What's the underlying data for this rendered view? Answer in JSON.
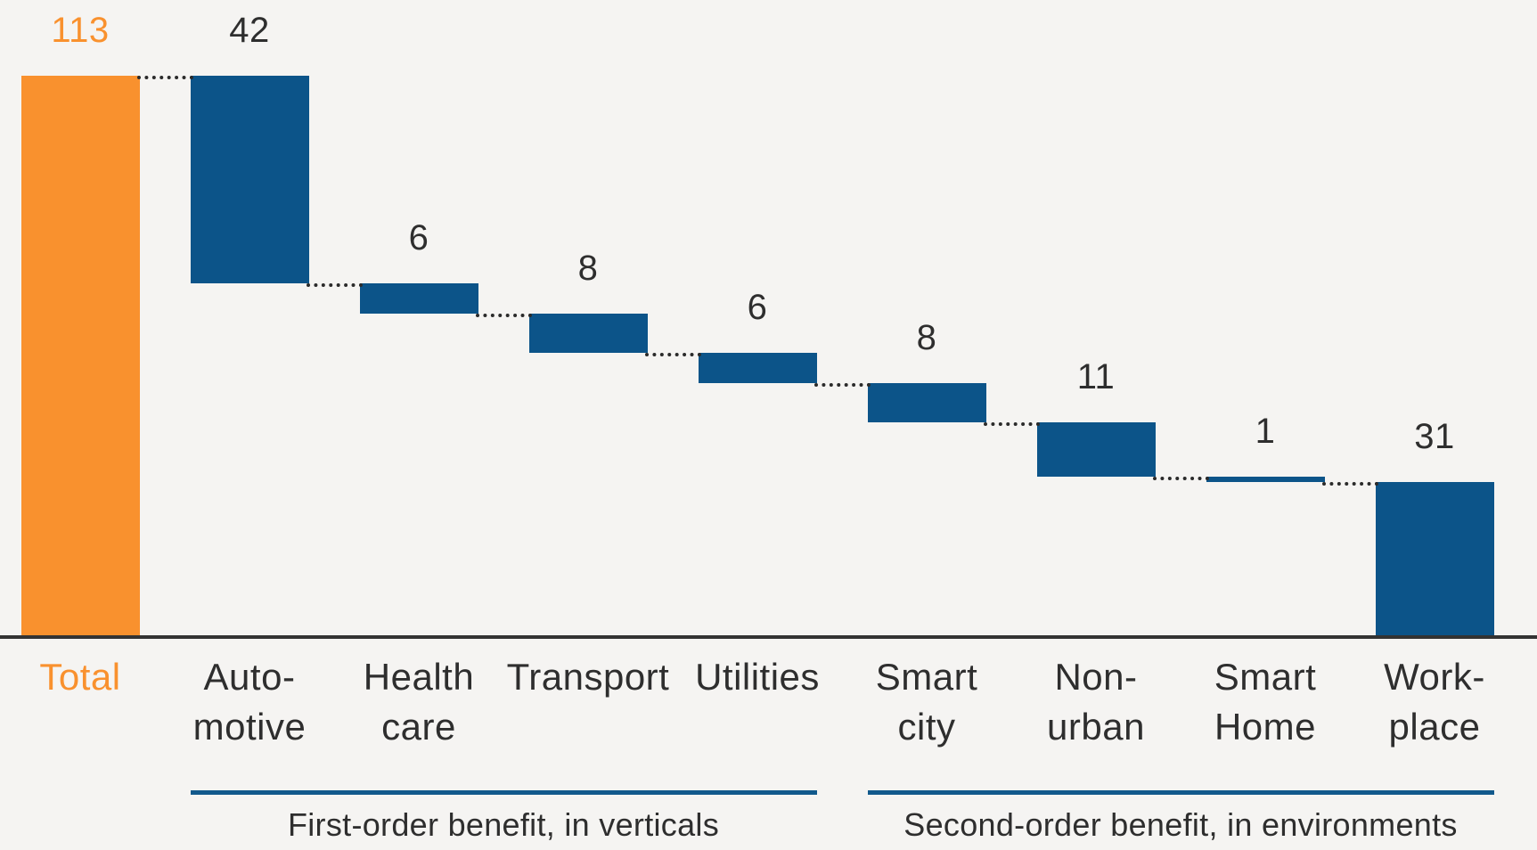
{
  "colors": {
    "background": "#F5F4F2",
    "total_bar": "#F9912E",
    "step_bar": "#0C5489",
    "axis_line": "#333333",
    "connector_dots": "#2B2B2B",
    "label_text": "#2E2E2E",
    "total_label_text": "#F9912E",
    "group_line": "#11598C"
  },
  "chart_data": {
    "type": "bar",
    "subtype": "waterfall",
    "title": "",
    "xlabel": "",
    "ylabel": "",
    "ylim": [
      0,
      113
    ],
    "grid": false,
    "legend": false,
    "connector_style": "dotted",
    "bars": [
      {
        "category": "Total",
        "label_lines": [
          "Total"
        ],
        "value": 113,
        "value_label": "113",
        "role": "total"
      },
      {
        "category": "Auto-motive",
        "label_lines": [
          "Auto-",
          "motive"
        ],
        "value": 42,
        "value_label": "42",
        "role": "decrease"
      },
      {
        "category": "Health care",
        "label_lines": [
          "Health",
          "care"
        ],
        "value": 6,
        "value_label": "6",
        "role": "decrease"
      },
      {
        "category": "Transport",
        "label_lines": [
          "Transport"
        ],
        "value": 8,
        "value_label": "8",
        "role": "decrease"
      },
      {
        "category": "Utilities",
        "label_lines": [
          "Utilities"
        ],
        "value": 6,
        "value_label": "6",
        "role": "decrease"
      },
      {
        "category": "Smart city",
        "label_lines": [
          "Smart",
          "city"
        ],
        "value": 8,
        "value_label": "8",
        "role": "decrease"
      },
      {
        "category": "Non-urban",
        "label_lines": [
          "Non-",
          "urban"
        ],
        "value": 11,
        "value_label": "11",
        "role": "decrease"
      },
      {
        "category": "Smart Home",
        "label_lines": [
          "Smart",
          "Home"
        ],
        "value": 1,
        "value_label": "1",
        "role": "decrease"
      },
      {
        "category": "Work-place",
        "label_lines": [
          "Work-",
          "place"
        ],
        "value": 31,
        "value_label": "31",
        "role": "decrease"
      }
    ],
    "groups": [
      {
        "label": "First-order benefit, in verticals",
        "start_index": 1,
        "end_index": 4
      },
      {
        "label": "Second-order benefit, in environments",
        "start_index": 5,
        "end_index": 8
      }
    ]
  }
}
